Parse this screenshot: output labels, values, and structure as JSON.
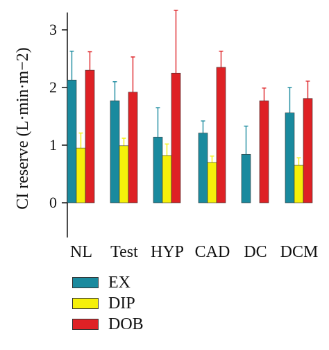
{
  "chart_data": {
    "type": "bar",
    "categories": [
      "NL",
      "Test",
      "HYP",
      "CAD",
      "DC",
      "DCM"
    ],
    "series": [
      {
        "name": "EX",
        "color": "#1a8a9e",
        "values": [
          2.13,
          1.77,
          1.14,
          1.21,
          0.84,
          1.56
        ],
        "errors": [
          0.5,
          0.33,
          0.51,
          0.21,
          0.49,
          0.44
        ]
      },
      {
        "name": "DIP",
        "color": "#f5f00a",
        "values": [
          0.95,
          0.99,
          0.82,
          0.7,
          null,
          0.65
        ],
        "errors": [
          0.26,
          0.13,
          0.2,
          0.11,
          null,
          0.13
        ]
      },
      {
        "name": "DOB",
        "color": "#de2125",
        "values": [
          2.3,
          1.92,
          2.25,
          2.35,
          1.77,
          1.81
        ],
        "errors": [
          0.32,
          0.61,
          1.09,
          0.28,
          0.22,
          0.3
        ]
      }
    ],
    "ylabel": "CI reserve (L·min·m−2)",
    "yticks": [
      "0",
      "1",
      "2",
      "3"
    ],
    "ylim": [
      -0.6,
      3.35
    ],
    "grid": false,
    "legend_position": "bottom-left"
  }
}
